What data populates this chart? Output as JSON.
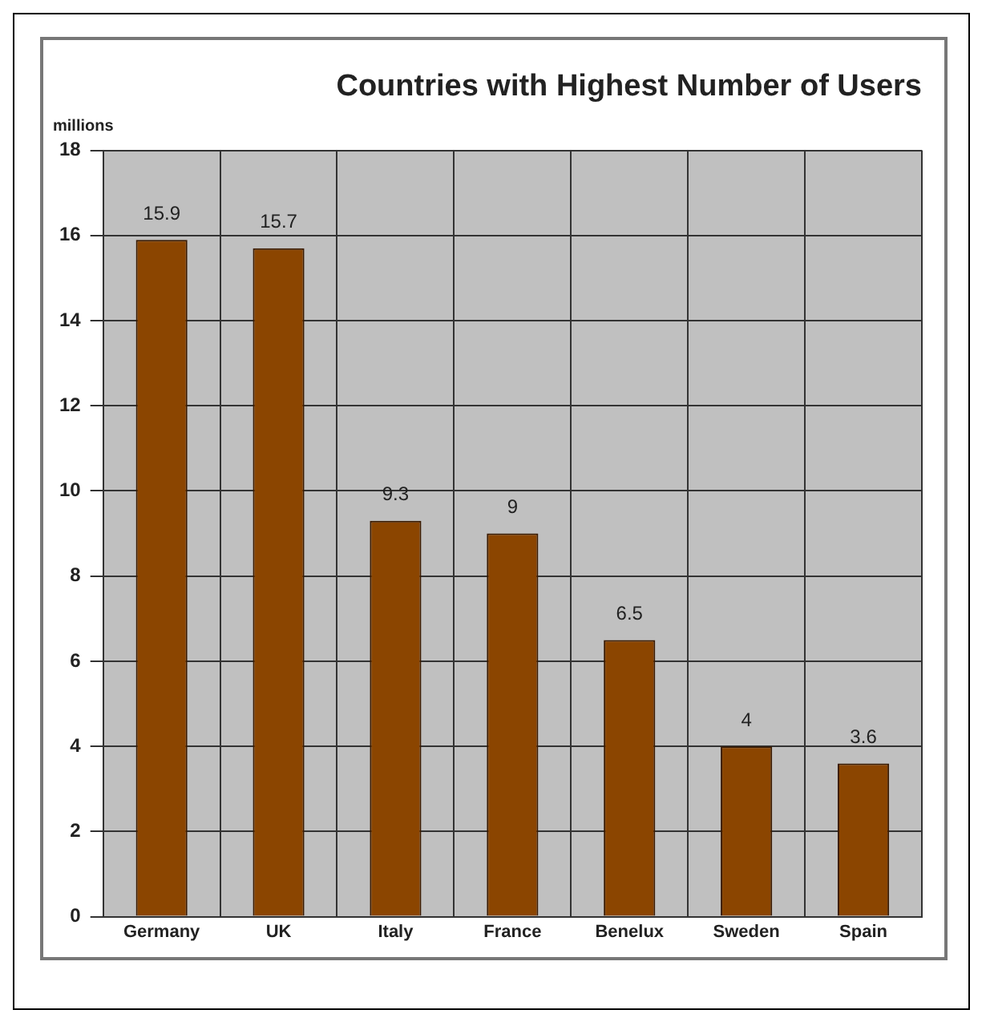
{
  "chart_data": {
    "type": "bar",
    "title": "Countries with Highest Number of Users",
    "ylabel": "millions",
    "categories": [
      "Germany",
      "UK",
      "Italy",
      "France",
      "Benelux",
      "Sweden",
      "Spain"
    ],
    "values": [
      15.9,
      15.7,
      9.3,
      9,
      6.5,
      4,
      3.6
    ],
    "color": "#8b4500",
    "ylim": [
      0,
      18
    ],
    "yticks": [
      0,
      2,
      4,
      6,
      8,
      10,
      12,
      14,
      16,
      18
    ],
    "grid": true,
    "data_labels": true,
    "legend": false
  }
}
